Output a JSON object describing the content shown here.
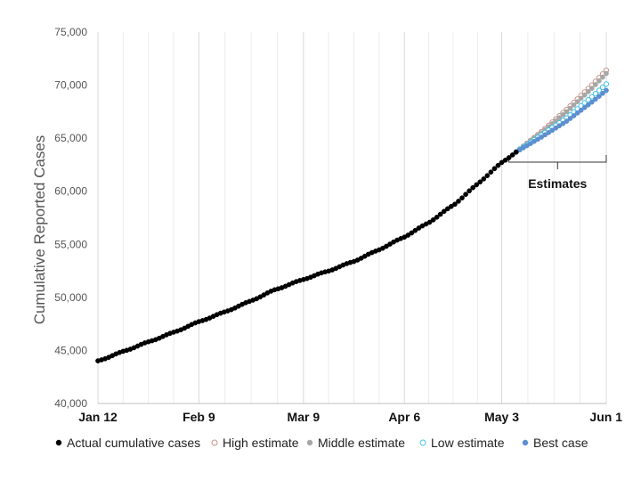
{
  "chart_data": {
    "type": "scatter",
    "ylabel": "Cumulative Reported Cases",
    "xlabel": "",
    "x_start": "2020-01-12",
    "x_end": "2020-06-01",
    "ylim": [
      40000,
      75000
    ],
    "y_ticks": [
      40000,
      45000,
      50000,
      55000,
      60000,
      65000,
      70000,
      75000
    ],
    "y_tick_labels": [
      "40,000",
      "45,000",
      "50,000",
      "55,000",
      "60,000",
      "65,000",
      "70,000",
      "75,000"
    ],
    "x_ticks": [
      {
        "date": "2020-01-12",
        "label": "Jan 12"
      },
      {
        "date": "2020-02-09",
        "label": "Feb 9"
      },
      {
        "date": "2020-03-09",
        "label": "Mar 9"
      },
      {
        "date": "2020-04-06",
        "label": "Apr 6"
      },
      {
        "date": "2020-05-03",
        "label": "May 3"
      },
      {
        "date": "2020-06-01",
        "label": "Jun 1"
      }
    ],
    "grid": "vertical gridlines",
    "legend_position": "bottom",
    "annotation": {
      "text": "Estimates",
      "from": "2020-05-03",
      "to": "2020-06-01"
    },
    "series": [
      {
        "name": "Actual cumulative cases",
        "color": "#000000",
        "marker": "filled",
        "points": [
          [
            "2020-01-12",
            44000
          ],
          [
            "2020-01-19",
            44900
          ],
          [
            "2020-01-26",
            45800
          ],
          [
            "2020-02-02",
            46700
          ],
          [
            "2020-02-09",
            47700
          ],
          [
            "2020-02-16",
            48600
          ],
          [
            "2020-02-23",
            49600
          ],
          [
            "2020-03-01",
            50700
          ],
          [
            "2020-03-09",
            51700
          ],
          [
            "2020-03-16",
            52500
          ],
          [
            "2020-03-23",
            53400
          ],
          [
            "2020-03-30",
            54500
          ],
          [
            "2020-04-06",
            55700
          ],
          [
            "2020-04-13",
            57100
          ],
          [
            "2020-04-20",
            58800
          ],
          [
            "2020-04-27",
            60900
          ],
          [
            "2020-05-03",
            62700
          ],
          [
            "2020-05-07",
            63700
          ]
        ]
      },
      {
        "name": "High estimate",
        "color": "#c8928a",
        "marker": "hollow",
        "points": [
          [
            "2020-05-07",
            63700
          ],
          [
            "2020-05-14",
            65600
          ],
          [
            "2020-05-21",
            67700
          ],
          [
            "2020-05-28",
            70000
          ],
          [
            "2020-06-01",
            71400
          ]
        ]
      },
      {
        "name": "Middle estimate",
        "color": "#a6a6a6",
        "marker": "filled",
        "points": [
          [
            "2020-05-07",
            63700
          ],
          [
            "2020-05-14",
            65500
          ],
          [
            "2020-05-21",
            67500
          ],
          [
            "2020-05-28",
            69700
          ],
          [
            "2020-06-01",
            71100
          ]
        ]
      },
      {
        "name": "Low estimate",
        "color": "#41c4ea",
        "marker": "hollow",
        "points": [
          [
            "2020-05-07",
            63700
          ],
          [
            "2020-05-14",
            65300
          ],
          [
            "2020-05-21",
            66900
          ],
          [
            "2020-05-28",
            68900
          ],
          [
            "2020-06-01",
            70100
          ]
        ]
      },
      {
        "name": "Best case",
        "color": "#5b8fd0",
        "marker": "filled",
        "points": [
          [
            "2020-05-07",
            63700
          ],
          [
            "2020-05-14",
            65100
          ],
          [
            "2020-05-21",
            66600
          ],
          [
            "2020-05-28",
            68400
          ],
          [
            "2020-06-01",
            69500
          ]
        ]
      }
    ]
  }
}
